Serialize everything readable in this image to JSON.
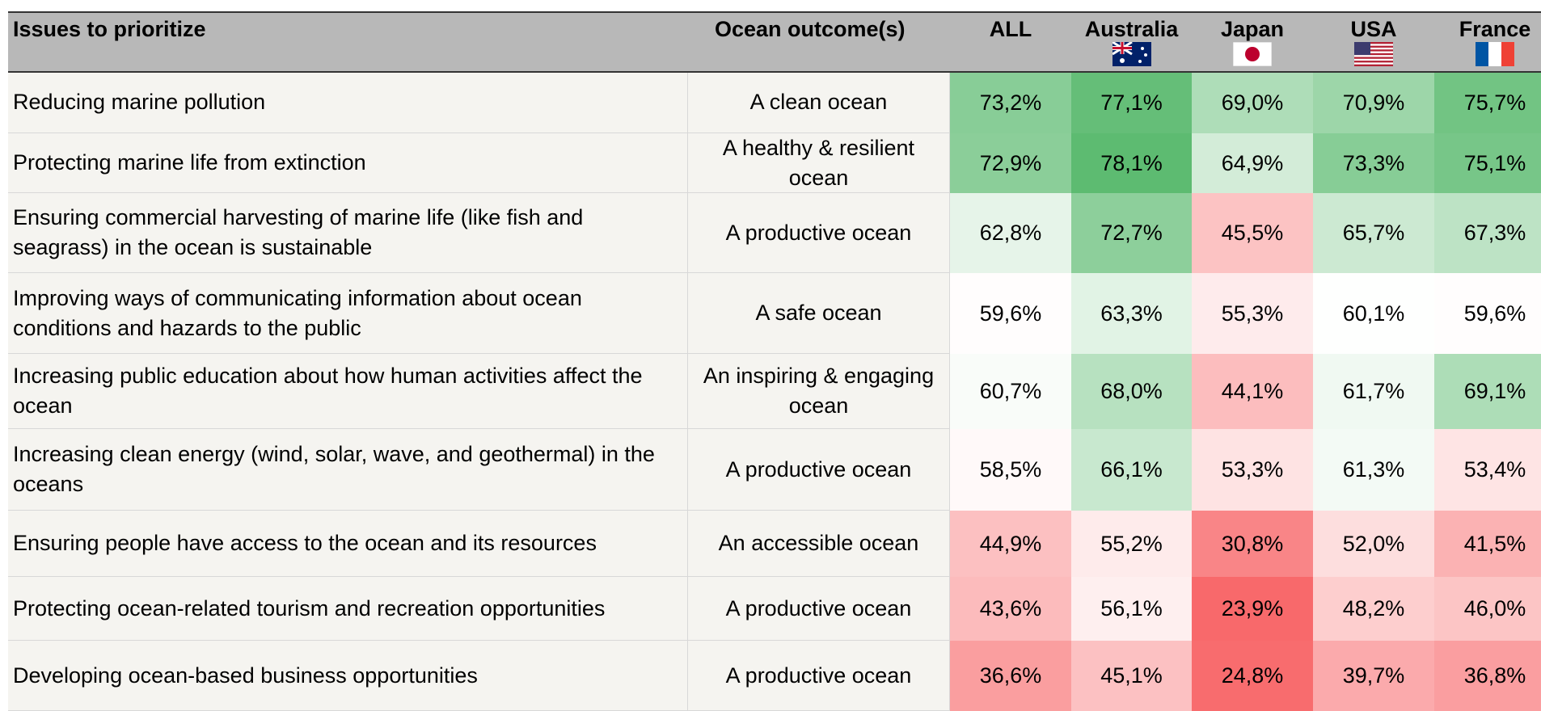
{
  "header": [
    "Issues to prioritize",
    "Ocean outcome(s)",
    "ALL",
    "Australia",
    "Japan",
    "USA",
    "France"
  ],
  "rows": [
    [
      "Reducing marine pollution",
      "A clean ocean",
      "73,2%",
      "77,1%",
      "69,0%",
      "70,9%",
      "75,7%"
    ],
    [
      "Protecting marine life from extinction",
      "A healthy & resilient ocean",
      "72,9%",
      "78,1%",
      "64,9%",
      "73,3%",
      "75,1%"
    ],
    [
      "Ensuring commercial harvesting of marine life (like fish and seagrass) in the ocean is sustainable",
      "A productive ocean",
      "62,8%",
      "72,7%",
      "45,5%",
      "65,7%",
      "67,3%"
    ],
    [
      "Improving ways of communicating information about ocean conditions and hazards to the public",
      "A safe ocean",
      "59,6%",
      "63,3%",
      "55,3%",
      "60,1%",
      "59,6%"
    ],
    [
      "Increasing public education about how human activities affect the ocean",
      "An inspiring & engaging ocean",
      "60,7%",
      "68,0%",
      "44,1%",
      "61,7%",
      "69,1%"
    ],
    [
      "Increasing clean energy (wind, solar, wave, and geothermal) in the oceans",
      "A productive ocean",
      "58,5%",
      "66,1%",
      "53,3%",
      "61,3%",
      "53,4%"
    ],
    [
      "Ensuring people have access to the ocean and its resources",
      "An accessible ocean",
      "44,9%",
      "55,2%",
      "30,8%",
      "52,0%",
      "41,5%"
    ],
    [
      "Protecting ocean-related tourism and recreation opportunities",
      "A productive ocean",
      "43,6%",
      "56,1%",
      "23,9%",
      "48,2%",
      "46,0%"
    ],
    [
      "Developing ocean-based business opportunities",
      "A productive ocean",
      "36,6%",
      "45,1%",
      "24,8%",
      "39,7%",
      "36,8%"
    ]
  ]
}
